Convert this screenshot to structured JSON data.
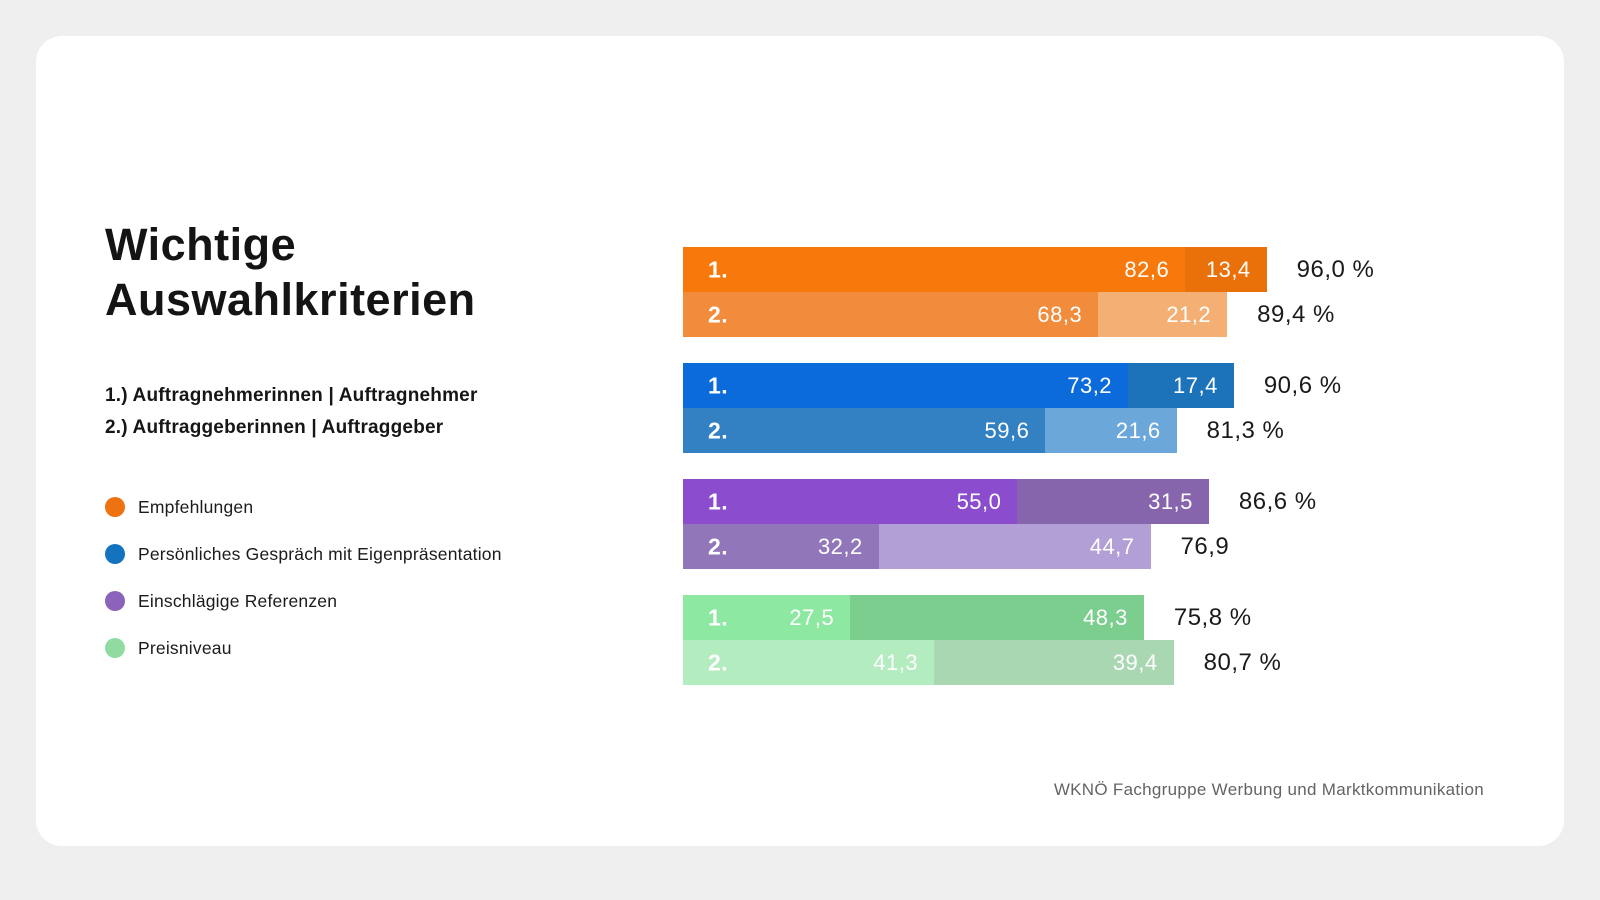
{
  "page": {
    "title_line1": "Wichtige",
    "title_line2": "Auswahlkriterien",
    "subtitle_lines": [
      "1.) Auftragnehmerinnen | Auftragnehmer",
      "2.) Auftraggeberinnen | Auftraggeber"
    ],
    "footer": "WKNÖ Fachgruppe Werbung und Marktkommunikation"
  },
  "legend": [
    {
      "label": "Empfehlungen",
      "color": "#ED7312"
    },
    {
      "label": "Persönliches Gespräch mit Eigenpräsentation",
      "color": "#1473BE"
    },
    {
      "label": "Einschlägige Referenzen",
      "color": "#8C63BA"
    },
    {
      "label": "Preisniveau",
      "color": "#90DCA0"
    }
  ],
  "chart_data": {
    "type": "bar",
    "orientation": "horizontal",
    "unit": "%",
    "title": "Wichtige Auswahlkriterien",
    "row_meaning": {
      "1.": "Auftragnehmerinnen | Auftragnehmer",
      "2.": "Auftraggeberinnen | Auftraggeber"
    },
    "xlim": [
      0,
      100
    ],
    "grid": false,
    "legend_position": "left",
    "groups": [
      {
        "name": "Empfehlungen",
        "rows": [
          {
            "label": "1.",
            "total": "96,0 %",
            "total_value": 96.0,
            "segments": [
              {
                "display": "82,6",
                "value": 82.6,
                "color": "#F8790B"
              },
              {
                "display": "13,4",
                "value": 13.4,
                "color": "#EA7009"
              }
            ]
          },
          {
            "label": "2.",
            "total": "89,4 %",
            "total_value": 89.4,
            "segments": [
              {
                "display": "68,3",
                "value": 68.3,
                "color": "#F18C3D"
              },
              {
                "display": "21,2",
                "value": 21.2,
                "color": "#F4AF74"
              }
            ]
          }
        ]
      },
      {
        "name": "Persönliches Gespräch mit Eigenpräsentation",
        "rows": [
          {
            "label": "1.",
            "total": "90,6 %",
            "total_value": 90.6,
            "segments": [
              {
                "display": "73,2",
                "value": 73.2,
                "color": "#0C6BDA"
              },
              {
                "display": "17,4",
                "value": 17.4,
                "color": "#1C73BA"
              }
            ]
          },
          {
            "label": "2.",
            "total": "81,3 %",
            "total_value": 81.3,
            "segments": [
              {
                "display": "59,6",
                "value": 59.6,
                "color": "#3381C2"
              },
              {
                "display": "21,6",
                "value": 21.6,
                "color": "#6CA7DA"
              }
            ]
          }
        ]
      },
      {
        "name": "Einschlägige Referenzen",
        "rows": [
          {
            "label": "1.",
            "total": "86,6 %",
            "total_value": 86.6,
            "segments": [
              {
                "display": "55,0",
                "value": 55.0,
                "color": "#8B4DCE"
              },
              {
                "display": "31,5",
                "value": 31.5,
                "color": "#8765AD"
              }
            ]
          },
          {
            "label": "2.",
            "total": "76,9",
            "total_value": 76.9,
            "segments": [
              {
                "display": "32,2",
                "value": 32.2,
                "color": "#9176B9"
              },
              {
                "display": "44,7",
                "value": 44.7,
                "color": "#B29FD6"
              }
            ]
          }
        ]
      },
      {
        "name": "Preisniveau",
        "rows": [
          {
            "label": "1.",
            "total": "75,8 %",
            "total_value": 75.8,
            "segments": [
              {
                "display": "27,5",
                "value": 27.5,
                "color": "#8DE9A1"
              },
              {
                "display": "48,3",
                "value": 48.3,
                "color": "#7BCE8E"
              }
            ]
          },
          {
            "label": "2.",
            "total": "80,7 %",
            "total_value": 80.7,
            "segments": [
              {
                "display": "41,3",
                "value": 41.3,
                "color": "#B2ECBF"
              },
              {
                "display": "39,4",
                "value": 39.4,
                "color": "#A9D7B1"
              }
            ]
          }
        ]
      }
    ]
  }
}
